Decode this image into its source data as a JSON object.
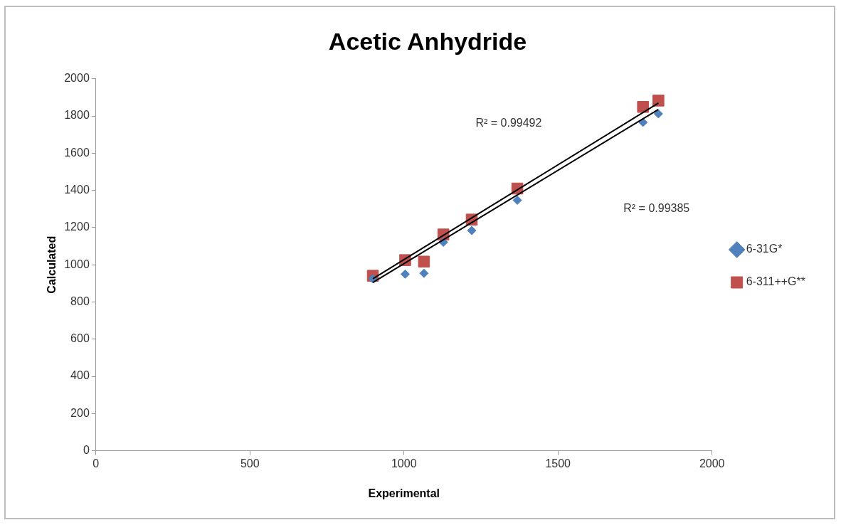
{
  "chart_data": {
    "type": "scatter",
    "title": "Acetic Anhydride",
    "xlabel": "Experimental",
    "ylabel": "Calculated",
    "xlim": [
      0,
      2000
    ],
    "xticks": [
      0,
      500,
      1000,
      1500,
      2000
    ],
    "ylim": [
      0,
      2000
    ],
    "yticks": [
      0,
      200,
      400,
      600,
      800,
      1000,
      1200,
      1400,
      1600,
      1800,
      2000
    ],
    "grid": false,
    "legend": "right",
    "series": [
      {
        "name": "6-31G*",
        "color": "#4f81bd",
        "marker": "diamond",
        "x": [
          899,
          1004,
          1065,
          1128,
          1220,
          1368,
          1776,
          1826
        ],
        "values": [
          925,
          950,
          954,
          1121,
          1184,
          1347,
          1766,
          1812
        ]
      },
      {
        "name": "6-311++G**",
        "color": "#c0504d",
        "marker": "square",
        "x": [
          899,
          1004,
          1065,
          1128,
          1220,
          1368,
          1776,
          1826
        ],
        "values": [
          941,
          1025,
          1017,
          1163,
          1243,
          1410,
          1849,
          1883
        ]
      },
      {
        "type": "line",
        "color": "#000000",
        "marker": "none",
        "x": [
          899,
          1826
        ],
        "values": [
          905,
          1835
        ]
      },
      {
        "type": "line",
        "color": "#000000",
        "marker": "none",
        "x": [
          899,
          1826
        ],
        "values": [
          925,
          1870
        ]
      }
    ],
    "annotations": [
      "R² = 0.99492",
      "R² = 0.99385"
    ]
  }
}
